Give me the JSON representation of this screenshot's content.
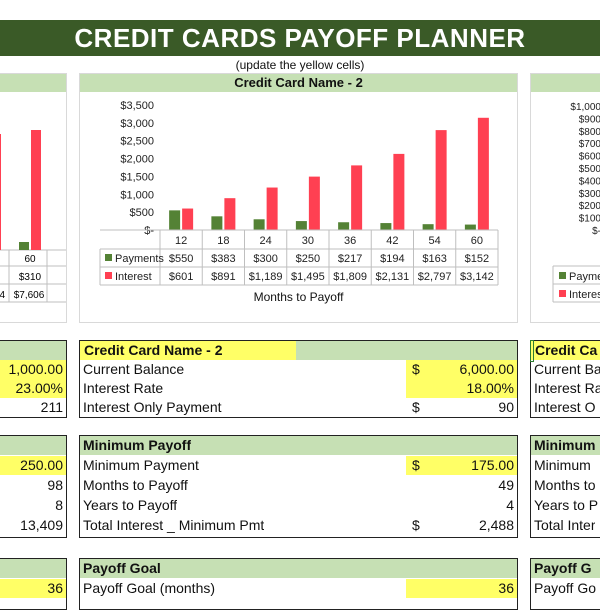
{
  "banner": {
    "title": "CREDIT CARDS PAYOFF PLANNER",
    "subtitle": "(update the yellow cells)"
  },
  "colors": {
    "banner": "#3a5a27",
    "header": "#c6e0b4",
    "input": "#ffff66",
    "payments": "#548235",
    "interest": "#ff4052"
  },
  "chart_left": {
    "last_x": "60",
    "payments_last": "$310",
    "interest_values": [
      "4",
      "$7,606"
    ]
  },
  "chart_right": {
    "y_ticks": [
      "$1,000",
      "$900",
      "$800",
      "$700",
      "$600",
      "$500",
      "$400",
      "$300",
      "$200",
      "$100",
      "$-"
    ],
    "legend": [
      "Payme",
      "Interes"
    ]
  },
  "chart_data": {
    "type": "bar",
    "title": "Credit Card Name - 2",
    "xlabel": "Months to Payoff",
    "ylabel": "",
    "ylim": [
      0,
      3500
    ],
    "y_ticks": [
      "$3,500",
      "$3,000",
      "$2,500",
      "$2,000",
      "$1,500",
      "$1,000",
      "$500",
      "$-"
    ],
    "categories": [
      "12",
      "18",
      "24",
      "30",
      "36",
      "42",
      "54",
      "60"
    ],
    "series": [
      {
        "name": "Payments",
        "values": [
          550,
          383,
          300,
          250,
          217,
          194,
          163,
          152
        ],
        "labels": [
          "$550",
          "$383",
          "$300",
          "$250",
          "$217",
          "$194",
          "$163",
          "$152"
        ]
      },
      {
        "name": "Interest",
        "values": [
          601,
          891,
          1189,
          1495,
          1809,
          2131,
          2797,
          3142
        ],
        "labels": [
          "$601",
          "$891",
          "$1,189",
          "$1,495",
          "$1,809",
          "$2,131",
          "$2,797",
          "$3,142"
        ]
      }
    ]
  },
  "card2": {
    "header": "Credit Card Name - 2",
    "rows": [
      {
        "label": "Current Balance",
        "currency": "$",
        "value": "6,000.00"
      },
      {
        "label": "Interest Rate",
        "currency": "",
        "value": "18.00%"
      },
      {
        "label": "Interest Only Payment",
        "currency": "$",
        "value": "90"
      }
    ],
    "min_header": "Minimum Payoff",
    "min_rows": [
      {
        "label": "Minimum Payment",
        "currency": "$",
        "value": "175.00"
      },
      {
        "label": "Months to Payoff",
        "currency": "",
        "value": "49"
      },
      {
        "label": "Years to Payoff",
        "currency": "",
        "value": "4"
      },
      {
        "label": "Total Interest _ Minimum Pmt",
        "currency": "$",
        "value": "2,488"
      }
    ],
    "goal_header": "Payoff Goal",
    "goal_rows": [
      {
        "label": "Payoff Goal (months)",
        "value": "36"
      }
    ]
  },
  "card1_partial": {
    "values": [
      "1,000.00",
      "23.00%",
      "211"
    ],
    "min_values": [
      "250.00",
      "98",
      "8",
      "13,409"
    ],
    "goal_value": "36"
  },
  "card3_partial": {
    "header": "Credit Ca",
    "labels": [
      "Current Ba",
      "Interest Ra",
      "Interest O"
    ],
    "min_header": "Minimum",
    "min_labels": [
      "Minimum",
      "Months to",
      "Years to P",
      "Total Inter"
    ],
    "goal_header": "Payoff G",
    "goal_label": "Payoff Go"
  }
}
